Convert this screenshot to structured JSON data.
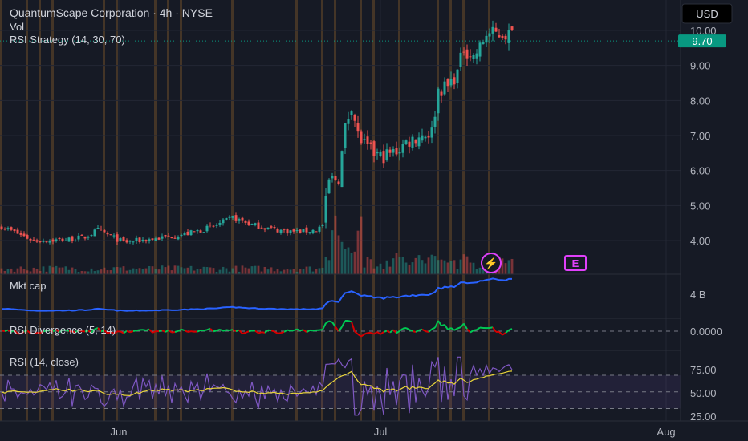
{
  "chart_data": {
    "type": "candlestick",
    "title": "QuantumScape Corporation · 4h · NYSE",
    "volume_label": "Vol",
    "strategy_label": "RSI Strategy (14, 30, 70)",
    "currency": "USD",
    "last_price": "9.70",
    "price_ticks": [
      "10.00",
      "9.00",
      "8.00",
      "7.00",
      "6.00",
      "5.00",
      "4.00"
    ],
    "price_range": [
      3.3,
      10.5
    ],
    "x_labels": [
      "Jun",
      "Jul",
      "Aug"
    ],
    "event_markers": [
      "⚡",
      "E"
    ],
    "bar_count": 160,
    "anchors": [
      [
        0,
        4.4
      ],
      [
        10,
        4.0
      ],
      [
        20,
        4.02
      ],
      [
        26,
        4.1
      ],
      [
        30,
        4.3
      ],
      [
        38,
        3.95
      ],
      [
        50,
        4.08
      ],
      [
        58,
        4.2
      ],
      [
        66,
        4.4
      ],
      [
        72,
        4.65
      ],
      [
        78,
        4.45
      ],
      [
        86,
        4.3
      ],
      [
        92,
        4.25
      ],
      [
        98,
        4.3
      ],
      [
        100,
        4.45
      ],
      [
        102,
        5.7
      ],
      [
        105,
        5.8
      ],
      [
        107,
        7.2
      ],
      [
        109,
        7.9
      ],
      [
        111,
        7.0
      ],
      [
        114,
        6.6
      ],
      [
        118,
        6.4
      ],
      [
        122,
        6.5
      ],
      [
        126,
        6.8
      ],
      [
        130,
        7.0
      ],
      [
        134,
        7.1
      ],
      [
        136,
        8.3
      ],
      [
        139,
        8.4
      ],
      [
        142,
        8.8
      ],
      [
        144,
        9.5
      ],
      [
        147,
        9.25
      ],
      [
        149,
        9.5
      ],
      [
        151,
        9.9
      ]
    ],
    "panels": [
      {
        "name": "Mkt cap",
        "value_label": "4 B"
      },
      {
        "name": "RSI Divergence (5, 14)",
        "value_label": "0.0000"
      },
      {
        "name": "RSI (14, close)",
        "ticks": [
          "75.00",
          "50.00",
          "25.00"
        ]
      }
    ],
    "colors": {
      "up": "#26a69a",
      "down": "#ef5350",
      "mktcap": "#2962ff",
      "div_up": "#00c853",
      "div_down": "#d50000",
      "rsi": "#7e57c2",
      "rsi_ma": "#e8d43a",
      "last_price_bg": "#089981",
      "marker": "#e040fb",
      "signal_stripe": "#9b6a2c"
    }
  }
}
